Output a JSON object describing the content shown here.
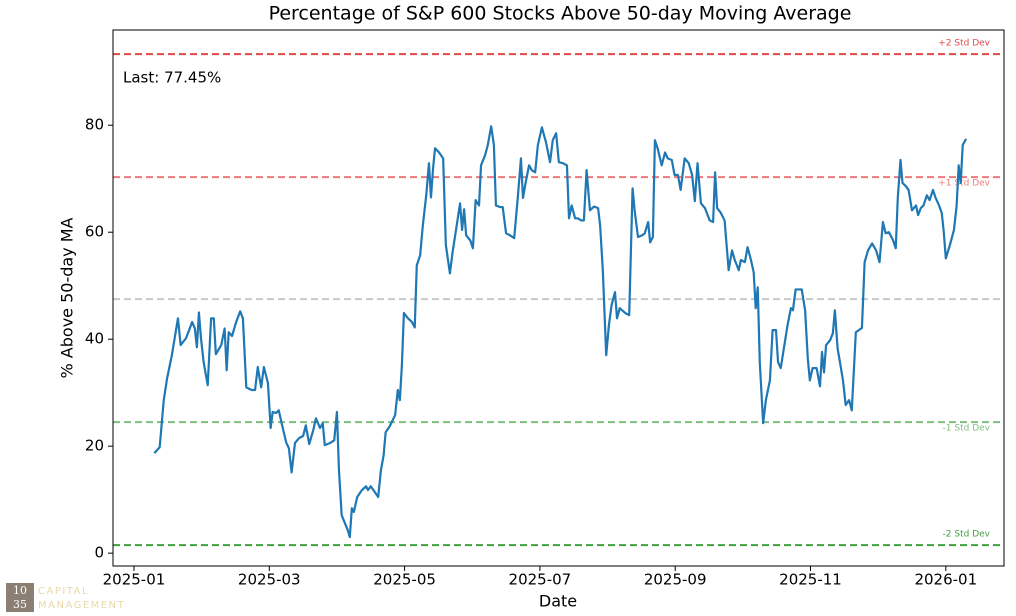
{
  "chart_data": {
    "type": "line",
    "title": "Percentage of S&P 600 Stocks Above 50-day Moving Average",
    "xlabel": "Date",
    "ylabel": "% Above 50-day MA",
    "annotation": "Last: 77.45%",
    "color": "#1f77b4",
    "x": [
      0.3,
      0.38,
      0.44,
      0.49,
      0.56,
      0.65,
      0.69,
      0.77,
      0.86,
      0.9,
      0.93,
      0.96,
      0.99,
      1.03,
      1.09,
      1.14,
      1.18,
      1.21,
      1.29,
      1.34,
      1.37,
      1.4,
      1.45,
      1.51,
      1.57,
      1.61,
      1.66,
      1.74,
      1.79,
      1.83,
      1.88,
      1.92,
      1.98,
      2.02,
      2.05,
      2.1,
      2.14,
      2.19,
      2.25,
      2.29,
      2.33,
      2.38,
      2.44,
      2.5,
      2.54,
      2.59,
      2.65,
      2.69,
      2.75,
      2.79,
      2.82,
      2.9,
      2.96,
      3.0,
      3.03,
      3.07,
      3.16,
      3.19,
      3.22,
      3.25,
      3.3,
      3.37,
      3.43,
      3.46,
      3.5,
      3.56,
      3.61,
      3.65,
      3.69,
      3.72,
      3.78,
      3.86,
      3.9,
      3.93,
      3.96,
      3.99,
      4.05,
      4.11,
      4.15,
      4.18,
      4.23,
      4.27,
      4.32,
      4.36,
      4.39,
      4.42,
      4.45,
      4.51,
      4.57,
      4.61,
      4.67,
      4.71,
      4.76,
      4.82,
      4.85,
      4.88,
      4.91,
      4.97,
      5.01,
      5.05,
      5.1,
      5.13,
      5.19,
      5.23,
      5.28,
      5.32,
      5.35,
      5.41,
      5.45,
      5.5,
      5.56,
      5.62,
      5.67,
      5.72,
      5.75,
      5.79,
      5.84,
      5.88,
      5.93,
      5.97,
      6.03,
      6.09,
      6.15,
      6.19,
      6.24,
      6.28,
      6.34,
      6.4,
      6.43,
      6.47,
      6.52,
      6.56,
      6.61,
      6.65,
      6.69,
      6.74,
      6.8,
      6.86,
      6.89,
      6.93,
      6.98,
      7.02,
      7.06,
      7.11,
      7.14,
      7.18,
      7.26,
      7.32,
      7.37,
      7.4,
      7.45,
      7.51,
      7.55,
      7.6,
      7.63,
      7.67,
      7.7,
      7.74,
      7.8,
      7.85,
      7.89,
      7.95,
      7.99,
      8.04,
      8.08,
      8.14,
      8.2,
      8.25,
      8.29,
      8.33,
      8.38,
      8.44,
      8.51,
      8.56,
      8.59,
      8.62,
      8.67,
      8.73,
      8.79,
      8.84,
      8.88,
      8.94,
      8.97,
      9.03,
      9.07,
      9.12,
      9.16,
      9.19,
      9.22,
      9.25,
      9.3,
      9.34,
      9.4,
      9.44,
      9.49,
      9.52,
      9.56,
      9.62,
      9.66,
      9.71,
      9.74,
      9.78,
      9.87,
      9.92,
      9.96,
      9.99,
      10.03,
      10.09,
      10.14,
      10.17,
      10.2,
      10.23,
      10.29,
      10.33,
      10.36,
      10.4,
      10.43,
      10.48,
      10.52,
      10.57,
      10.61,
      10.67,
      10.76,
      10.8,
      10.85,
      10.91,
      10.97,
      11.02,
      11.07,
      11.11,
      11.16,
      11.22,
      11.26,
      11.29,
      11.33,
      11.36,
      11.41,
      11.45,
      11.5,
      11.56,
      11.59,
      11.63,
      11.67,
      11.72,
      11.76,
      11.81,
      11.85,
      11.9,
      11.94,
      11.97,
      12.0,
      12.06,
      12.12,
      12.16,
      12.19,
      12.22,
      12.25,
      12.3
    ],
    "values": [
      18.7,
      19.8,
      28.6,
      32.7,
      37,
      43.9,
      38.9,
      40.2,
      43.2,
      42,
      38.5,
      45,
      40.2,
      35.7,
      31.4,
      43.9,
      43.9,
      37.2,
      38.9,
      42,
      34.2,
      41.3,
      40.6,
      43.2,
      45.2,
      43.9,
      31,
      30.5,
      30.5,
      34.8,
      31,
      34.8,
      31.8,
      23.4,
      26.4,
      26.2,
      26.7,
      23.9,
      20.7,
      19.6,
      15.1,
      20.6,
      21.5,
      21.9,
      23.9,
      20.4,
      23,
      25.2,
      23.4,
      24.3,
      20.2,
      20.6,
      21.1,
      26.4,
      15.5,
      7.1,
      4.3,
      3,
      8.4,
      7.7,
      10.5,
      11.8,
      12.5,
      11.8,
      12.5,
      11.4,
      10.5,
      15.5,
      18.3,
      22.6,
      23.7,
      25.8,
      30.5,
      28.6,
      35.1,
      44.9,
      43.9,
      43.2,
      42.2,
      53.8,
      55.7,
      61.3,
      66.9,
      72.9,
      66.5,
      71.8,
      75.7,
      74.9,
      73.8,
      57.6,
      52.3,
      56.3,
      60.4,
      65.4,
      60.4,
      64.3,
      59.4,
      58.5,
      57,
      66,
      65,
      72.5,
      74.4,
      76.3,
      79.8,
      76.3,
      65,
      64.7,
      64.7,
      59.8,
      59.4,
      58.9,
      66,
      73.8,
      66.4,
      69.3,
      72.5,
      71.6,
      71.2,
      76.3,
      79.6,
      76.8,
      73.1,
      77.2,
      78.5,
      73.1,
      72.9,
      72.5,
      62.6,
      65,
      62.6,
      62.6,
      62.2,
      62.2,
      71.6,
      64.1,
      64.8,
      64.5,
      61.3,
      52.9,
      37,
      42.6,
      46.4,
      48.8,
      43.9,
      45.8,
      44.9,
      44.5,
      68.2,
      64.1,
      59.1,
      59.4,
      59.8,
      61.9,
      58.1,
      59.1,
      77.2,
      75.7,
      72.5,
      74.9,
      73.8,
      73.5,
      70.7,
      70.7,
      67.9,
      73.8,
      72.9,
      70.7,
      65.8,
      72.9,
      65.4,
      64.5,
      62.2,
      61.9,
      71.2,
      64.5,
      63.7,
      62.2,
      52.9,
      56.6,
      54.8,
      52.9,
      54.8,
      54.4,
      57.2,
      54.8,
      52.5,
      45.8,
      49.7,
      35.7,
      24.3,
      28.6,
      32.3,
      41.7,
      41.7,
      35.7,
      34.6,
      39.4,
      42.6,
      45.8,
      45.4,
      49.3,
      49.3,
      45.4,
      36.4,
      32.3,
      34.6,
      34.6,
      31.2,
      37.6,
      33.8,
      38.9,
      39.8,
      41.1,
      45.4,
      38.3,
      36.1,
      32.3,
      27.7,
      28.6,
      26.7,
      41.3,
      42.1,
      54.4,
      56.6,
      57.9,
      56.6,
      54.4,
      61.9,
      59.8,
      60,
      58.5,
      57,
      66.4,
      73.5,
      69.2,
      68.6,
      67.9,
      64.1,
      65,
      63.2,
      64.5,
      65,
      66.9,
      66,
      67.9,
      66.4,
      65,
      63.6,
      60,
      55.1,
      57.6,
      60.4,
      65,
      72.5,
      69.2,
      76.3,
      77.45
    ],
    "xlim": [
      -0.31,
      12.86
    ],
    "xticks": [
      {
        "value": 0,
        "label": "2025-01"
      },
      {
        "value": 2,
        "label": "2025-03"
      },
      {
        "value": 4,
        "label": "2025-05"
      },
      {
        "value": 6,
        "label": "2025-07"
      },
      {
        "value": 8,
        "label": "2025-09"
      },
      {
        "value": 10,
        "label": "2025-11"
      },
      {
        "value": 12,
        "label": "2026-01"
      }
    ],
    "ylim": [
      -2.4,
      97.8
    ],
    "yticks": [
      0,
      20,
      40,
      60,
      80
    ],
    "reference_lines": [
      {
        "value": 93.3,
        "label": "+2 Std Dev",
        "color": "#e04848"
      },
      {
        "value": 70.3,
        "label": "+1 Std Dev",
        "color": "#ee7a7a"
      },
      {
        "value": 47.5,
        "color": "#c8c8c8"
      },
      {
        "value": 24.5,
        "label": "-1 Std Dev",
        "color": "#7fbf7f"
      },
      {
        "value": 1.5,
        "label": "-2 Std Dev",
        "color": "#40a040"
      }
    ]
  },
  "watermark": {
    "mark": [
      "10",
      "35"
    ],
    "name": [
      "CAPITAL",
      "MANAGEMENT"
    ]
  }
}
